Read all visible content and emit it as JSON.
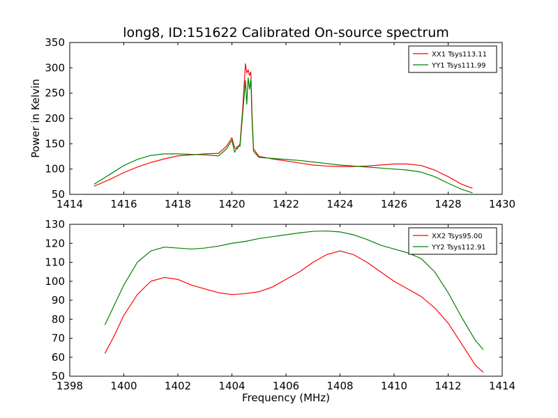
{
  "title": "long8, ID:151622 Calibrated On-source spectrum",
  "chart_data": [
    {
      "type": "line",
      "title": "long8, ID:151622 Calibrated On-source spectrum",
      "xlabel": "",
      "ylabel": "Power in Kelvin",
      "xlim": [
        1414,
        1430
      ],
      "ylim": [
        50,
        350
      ],
      "xticks": [
        1414,
        1416,
        1418,
        1420,
        1422,
        1424,
        1426,
        1428,
        1430
      ],
      "yticks": [
        50,
        100,
        150,
        200,
        250,
        300,
        350
      ],
      "legend_position": "top-right",
      "series": [
        {
          "name": "XX1 Tsys113.11",
          "color": "#ff0000",
          "x": [
            1414.9,
            1415.5,
            1416.0,
            1416.5,
            1417.0,
            1417.5,
            1418.0,
            1418.5,
            1419.0,
            1419.5,
            1419.7,
            1419.8,
            1420.0,
            1420.1,
            1420.2,
            1420.3,
            1420.4,
            1420.5,
            1420.55,
            1420.6,
            1420.65,
            1420.7,
            1420.75,
            1420.8,
            1421.0,
            1421.5,
            1422.0,
            1422.5,
            1423.0,
            1423.5,
            1424.0,
            1424.5,
            1425.0,
            1425.5,
            1426.0,
            1426.5,
            1427.0,
            1427.5,
            1428.0,
            1428.5,
            1428.9
          ],
          "y": [
            66,
            80,
            93,
            104,
            113,
            120,
            126,
            128,
            130,
            131,
            140,
            145,
            162,
            142,
            140,
            150,
            220,
            308,
            290,
            296,
            285,
            292,
            200,
            140,
            125,
            120,
            116,
            112,
            108,
            106,
            105,
            105,
            106,
            108,
            110,
            110,
            107,
            98,
            85,
            70,
            62
          ]
        },
        {
          "name": "YY1 Tsys111.99",
          "color": "#008000",
          "x": [
            1414.9,
            1415.5,
            1416.0,
            1416.5,
            1417.0,
            1417.5,
            1418.0,
            1418.5,
            1419.0,
            1419.5,
            1419.7,
            1419.8,
            1420.0,
            1420.1,
            1420.2,
            1420.3,
            1420.4,
            1420.5,
            1420.55,
            1420.6,
            1420.65,
            1420.7,
            1420.75,
            1420.8,
            1421.0,
            1421.5,
            1422.0,
            1422.5,
            1423.0,
            1423.5,
            1424.0,
            1424.5,
            1425.0,
            1425.5,
            1426.0,
            1426.5,
            1427.0,
            1427.5,
            1428.0,
            1428.5,
            1428.9
          ],
          "y": [
            70,
            90,
            107,
            119,
            127,
            130,
            130,
            129,
            128,
            126,
            135,
            140,
            157,
            133,
            145,
            145,
            210,
            275,
            228,
            280,
            258,
            276,
            190,
            135,
            123,
            121,
            119,
            117,
            114,
            111,
            108,
            106,
            104,
            102,
            100,
            98,
            94,
            85,
            72,
            60,
            53
          ]
        }
      ]
    },
    {
      "type": "line",
      "title": "",
      "xlabel": "Frequency (MHz)",
      "ylabel": "",
      "xlim": [
        1398,
        1414
      ],
      "ylim": [
        50,
        130
      ],
      "xticks": [
        1398,
        1400,
        1402,
        1404,
        1406,
        1408,
        1410,
        1412,
        1414
      ],
      "yticks": [
        50,
        60,
        70,
        80,
        90,
        100,
        110,
        120,
        130
      ],
      "legend_position": "top-right",
      "series": [
        {
          "name": "XX2 Tsys95.00",
          "color": "#ff0000",
          "x": [
            1399.3,
            1399.6,
            1400.0,
            1400.5,
            1401.0,
            1401.5,
            1402.0,
            1402.5,
            1403.0,
            1403.5,
            1404.0,
            1404.5,
            1405.0,
            1405.5,
            1406.0,
            1406.5,
            1407.0,
            1407.5,
            1408.0,
            1408.5,
            1409.0,
            1409.5,
            1410.0,
            1410.5,
            1411.0,
            1411.5,
            1412.0,
            1412.5,
            1413.0,
            1413.3
          ],
          "y": [
            62,
            70,
            82,
            93,
            100,
            102,
            101,
            98,
            96,
            94,
            93,
            93.5,
            94.5,
            97,
            101,
            105,
            110,
            114,
            116,
            114,
            110,
            105,
            100,
            96,
            92,
            86,
            78,
            67,
            56,
            52
          ]
        },
        {
          "name": "YY2 Tsys112.91",
          "color": "#008000",
          "x": [
            1399.3,
            1399.6,
            1400.0,
            1400.5,
            1401.0,
            1401.5,
            1402.0,
            1402.5,
            1403.0,
            1403.5,
            1404.0,
            1404.5,
            1405.0,
            1405.5,
            1406.0,
            1406.5,
            1407.0,
            1407.5,
            1408.0,
            1408.5,
            1409.0,
            1409.5,
            1410.0,
            1410.5,
            1411.0,
            1411.5,
            1412.0,
            1412.5,
            1413.0,
            1413.3
          ],
          "y": [
            77,
            86,
            98,
            110,
            116,
            118,
            117.5,
            117,
            117.5,
            118.5,
            120,
            121,
            122.5,
            123.5,
            124.5,
            125.5,
            126.3,
            126.5,
            126,
            124.5,
            122,
            119,
            117,
            115,
            112,
            105,
            94,
            81,
            69,
            64
          ]
        }
      ]
    }
  ]
}
